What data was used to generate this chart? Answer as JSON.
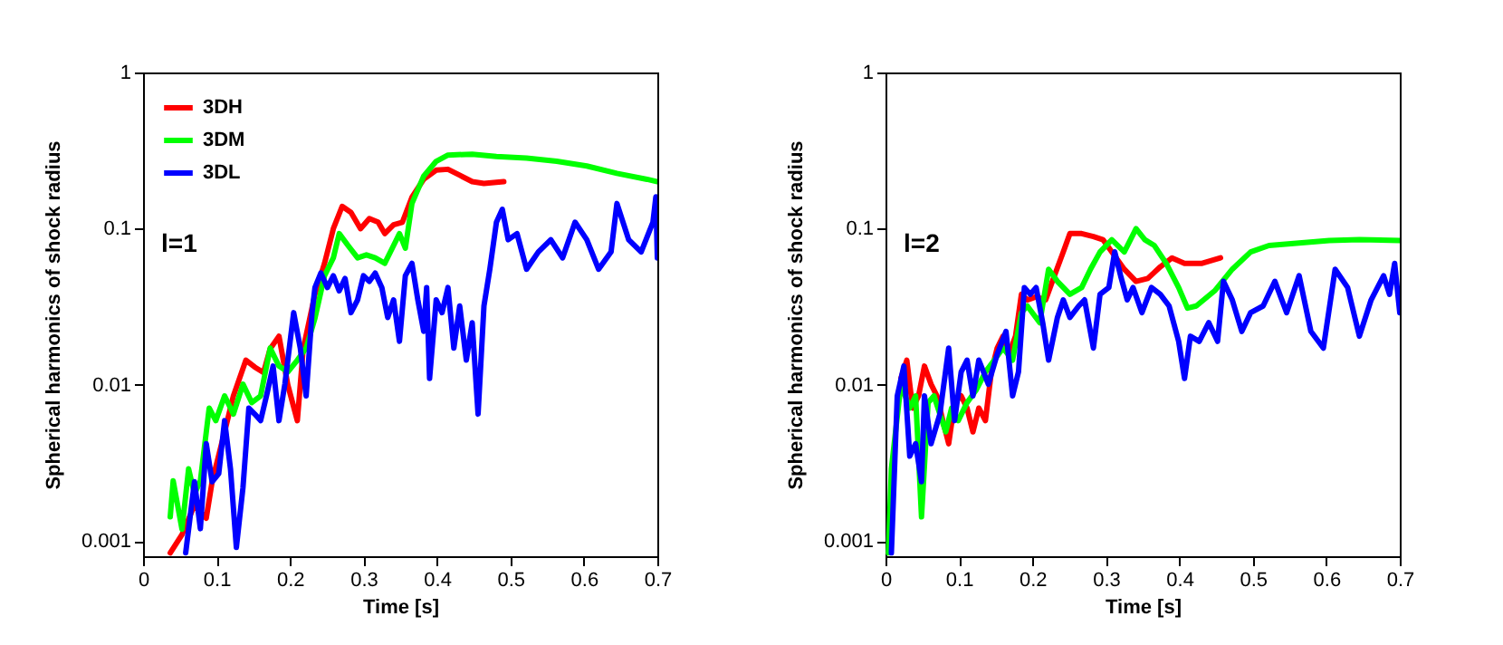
{
  "chart_data": [
    {
      "type": "line",
      "xlabel": "Time [s]",
      "ylabel": "Spherical harmonics of shock radius",
      "annotations": [
        "l=1"
      ],
      "log": "y",
      "legend": "top left",
      "line_style": "solid",
      "marker": "none",
      "xlim": [
        0,
        0.7
      ],
      "xticks": [
        0,
        0.1,
        0.2,
        0.3,
        0.4,
        0.5,
        0.6,
        0.7
      ],
      "ylim": [
        0.0008,
        1
      ],
      "yticks": [
        0.001,
        0.01,
        0.1,
        1
      ],
      "series": [
        {
          "name": "3DH",
          "color": "#ff0000",
          "x": [
            0.037,
            0.053,
            0.07,
            0.086,
            0.094,
            0.111,
            0.123,
            0.14,
            0.152,
            0.164,
            0.173,
            0.185,
            0.197,
            0.21,
            0.218,
            0.234,
            0.247,
            0.259,
            0.271,
            0.283,
            0.296,
            0.308,
            0.32,
            0.329,
            0.341,
            0.353,
            0.366,
            0.382,
            0.399,
            0.415,
            0.431,
            0.448,
            0.464,
            0.491
          ],
          "values": [
            0.00084,
            0.0011,
            0.0017,
            0.0014,
            0.0024,
            0.005,
            0.0085,
            0.0144,
            0.013,
            0.012,
            0.017,
            0.0205,
            0.01,
            0.0059,
            0.017,
            0.038,
            0.06,
            0.1,
            0.139,
            0.127,
            0.1,
            0.116,
            0.11,
            0.093,
            0.106,
            0.11,
            0.159,
            0.207,
            0.237,
            0.24,
            0.22,
            0.2,
            0.195,
            0.2
          ]
        },
        {
          "name": "3DM",
          "color": "#00ff00",
          "x": [
            0.037,
            0.041,
            0.053,
            0.062,
            0.07,
            0.078,
            0.09,
            0.099,
            0.111,
            0.123,
            0.136,
            0.148,
            0.16,
            0.173,
            0.185,
            0.197,
            0.21,
            0.222,
            0.234,
            0.247,
            0.259,
            0.267,
            0.279,
            0.292,
            0.304,
            0.316,
            0.329,
            0.341,
            0.349,
            0.357,
            0.366,
            0.382,
            0.399,
            0.415,
            0.448,
            0.481,
            0.522,
            0.563,
            0.604,
            0.645,
            0.686,
            0.7
          ],
          "values": [
            0.00143,
            0.00243,
            0.00119,
            0.0029,
            0.002,
            0.00243,
            0.0071,
            0.0059,
            0.0085,
            0.0065,
            0.0101,
            0.0077,
            0.0085,
            0.0172,
            0.0132,
            0.0121,
            0.0144,
            0.0172,
            0.0268,
            0.05,
            0.065,
            0.093,
            0.078,
            0.065,
            0.068,
            0.065,
            0.06,
            0.078,
            0.093,
            0.075,
            0.145,
            0.217,
            0.27,
            0.296,
            0.3,
            0.29,
            0.283,
            0.27,
            0.252,
            0.226,
            0.207,
            0.2
          ]
        },
        {
          "name": "3DL",
          "color": "#0000ff",
          "x": [
            0.058,
            0.07,
            0.078,
            0.086,
            0.094,
            0.103,
            0.111,
            0.119,
            0.127,
            0.136,
            0.144,
            0.152,
            0.16,
            0.168,
            0.177,
            0.185,
            0.193,
            0.205,
            0.214,
            0.222,
            0.23,
            0.234,
            0.242,
            0.251,
            0.259,
            0.267,
            0.275,
            0.283,
            0.292,
            0.3,
            0.308,
            0.316,
            0.325,
            0.333,
            0.341,
            0.349,
            0.357,
            0.366,
            0.374,
            0.382,
            0.386,
            0.39,
            0.399,
            0.407,
            0.415,
            0.423,
            0.431,
            0.44,
            0.448,
            0.456,
            0.464,
            0.472,
            0.481,
            0.489,
            0.497,
            0.509,
            0.522,
            0.538,
            0.555,
            0.571,
            0.588,
            0.604,
            0.62,
            0.637,
            0.645,
            0.661,
            0.678,
            0.694,
            0.698,
            0.7
          ],
          "values": [
            0.00084,
            0.0024,
            0.0012,
            0.0042,
            0.0024,
            0.0027,
            0.0059,
            0.0029,
            0.00091,
            0.0022,
            0.0071,
            0.0065,
            0.0059,
            0.0085,
            0.0132,
            0.0059,
            0.0101,
            0.029,
            0.0172,
            0.0085,
            0.029,
            0.042,
            0.052,
            0.042,
            0.05,
            0.04,
            0.048,
            0.029,
            0.035,
            0.05,
            0.046,
            0.052,
            0.042,
            0.027,
            0.035,
            0.019,
            0.05,
            0.06,
            0.035,
            0.022,
            0.042,
            0.011,
            0.035,
            0.029,
            0.042,
            0.0172,
            0.032,
            0.0144,
            0.025,
            0.0065,
            0.032,
            0.055,
            0.11,
            0.133,
            0.085,
            0.093,
            0.055,
            0.071,
            0.085,
            0.065,
            0.11,
            0.085,
            0.055,
            0.071,
            0.145,
            0.085,
            0.071,
            0.11,
            0.16,
            0.065
          ]
        }
      ]
    },
    {
      "type": "line",
      "xlabel": "Time [s]",
      "ylabel": "Spherical harmonics of shock radius",
      "annotations": [
        "l=2"
      ],
      "log": "y",
      "legend": "top left",
      "line_style": "solid",
      "marker": "none",
      "xlim": [
        0,
        0.7
      ],
      "xticks": [
        0,
        0.1,
        0.2,
        0.3,
        0.4,
        0.5,
        0.6,
        0.7
      ],
      "ylim": [
        0.0008,
        1
      ],
      "yticks": [
        0.001,
        0.01,
        0.1,
        1
      ],
      "series": [
        {
          "name": "3DH",
          "color": "#ff0000",
          "x": [
            0.021,
            0.029,
            0.037,
            0.045,
            0.053,
            0.062,
            0.07,
            0.078,
            0.086,
            0.094,
            0.103,
            0.111,
            0.119,
            0.127,
            0.136,
            0.144,
            0.152,
            0.16,
            0.168,
            0.177,
            0.185,
            0.193,
            0.205,
            0.218,
            0.23,
            0.242,
            0.251,
            0.267,
            0.283,
            0.296,
            0.308,
            0.325,
            0.341,
            0.357,
            0.374,
            0.39,
            0.407,
            0.431,
            0.456
          ],
          "values": [
            0.011,
            0.0144,
            0.0071,
            0.0085,
            0.0132,
            0.0101,
            0.0085,
            0.0059,
            0.0042,
            0.0077,
            0.0085,
            0.0071,
            0.005,
            0.0071,
            0.0059,
            0.0121,
            0.0172,
            0.0205,
            0.0157,
            0.0205,
            0.038,
            0.035,
            0.0366,
            0.035,
            0.05,
            0.071,
            0.093,
            0.093,
            0.089,
            0.085,
            0.071,
            0.055,
            0.046,
            0.048,
            0.057,
            0.065,
            0.06,
            0.06,
            0.065
          ]
        },
        {
          "name": "3DM",
          "color": "#00ff00",
          "x": [
            0.004,
            0.008,
            0.021,
            0.033,
            0.041,
            0.049,
            0.058,
            0.066,
            0.074,
            0.082,
            0.09,
            0.099,
            0.111,
            0.123,
            0.136,
            0.148,
            0.16,
            0.173,
            0.185,
            0.193,
            0.21,
            0.222,
            0.234,
            0.251,
            0.267,
            0.279,
            0.292,
            0.308,
            0.325,
            0.341,
            0.353,
            0.366,
            0.382,
            0.399,
            0.411,
            0.423,
            0.448,
            0.472,
            0.497,
            0.522,
            0.563,
            0.604,
            0.645,
            0.7
          ],
          "values": [
            0.00084,
            0.0029,
            0.0101,
            0.0071,
            0.0085,
            0.00143,
            0.0077,
            0.0085,
            0.0065,
            0.005,
            0.0071,
            0.0059,
            0.0077,
            0.0092,
            0.0121,
            0.0144,
            0.0172,
            0.0144,
            0.029,
            0.032,
            0.025,
            0.055,
            0.046,
            0.038,
            0.042,
            0.055,
            0.071,
            0.085,
            0.071,
            0.1,
            0.085,
            0.078,
            0.06,
            0.042,
            0.031,
            0.032,
            0.04,
            0.055,
            0.071,
            0.078,
            0.081,
            0.084,
            0.085,
            0.084
          ]
        },
        {
          "name": "3DL",
          "color": "#0000ff",
          "x": [
            0.008,
            0.016,
            0.025,
            0.033,
            0.041,
            0.049,
            0.053,
            0.062,
            0.074,
            0.086,
            0.094,
            0.103,
            0.111,
            0.119,
            0.127,
            0.14,
            0.152,
            0.164,
            0.173,
            0.181,
            0.189,
            0.197,
            0.205,
            0.214,
            0.222,
            0.234,
            0.242,
            0.251,
            0.263,
            0.271,
            0.283,
            0.292,
            0.304,
            0.312,
            0.32,
            0.329,
            0.337,
            0.349,
            0.362,
            0.374,
            0.386,
            0.399,
            0.407,
            0.415,
            0.427,
            0.44,
            0.452,
            0.46,
            0.472,
            0.485,
            0.497,
            0.514,
            0.53,
            0.546,
            0.563,
            0.579,
            0.596,
            0.612,
            0.629,
            0.645,
            0.661,
            0.678,
            0.686,
            0.693,
            0.7
          ],
          "values": [
            0.00084,
            0.0085,
            0.0132,
            0.0035,
            0.0042,
            0.0024,
            0.0085,
            0.0042,
            0.0065,
            0.0172,
            0.0059,
            0.0121,
            0.0144,
            0.0085,
            0.0144,
            0.0101,
            0.0157,
            0.022,
            0.0085,
            0.0121,
            0.042,
            0.038,
            0.042,
            0.025,
            0.0144,
            0.027,
            0.035,
            0.027,
            0.032,
            0.035,
            0.0172,
            0.038,
            0.042,
            0.071,
            0.05,
            0.035,
            0.042,
            0.029,
            0.042,
            0.038,
            0.032,
            0.019,
            0.011,
            0.0205,
            0.019,
            0.025,
            0.019,
            0.046,
            0.035,
            0.022,
            0.029,
            0.032,
            0.046,
            0.029,
            0.05,
            0.022,
            0.0172,
            0.055,
            0.042,
            0.0205,
            0.035,
            0.05,
            0.038,
            0.06,
            0.029
          ]
        }
      ]
    }
  ]
}
